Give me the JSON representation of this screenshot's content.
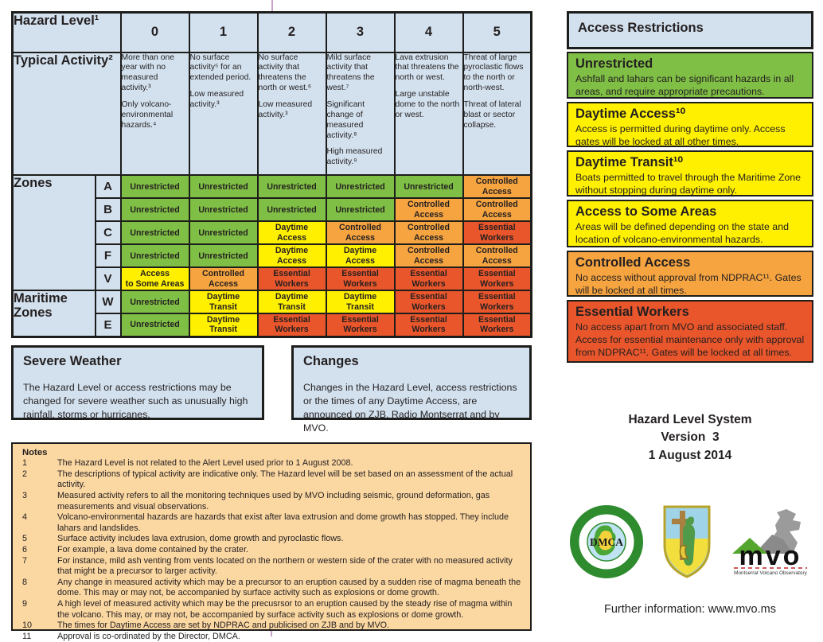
{
  "table": {
    "title": "Hazard Level¹",
    "levels": [
      "0",
      "1",
      "2",
      "3",
      "4",
      "5"
    ],
    "typical_title": "Typical Activity²",
    "typical": [
      {
        "paragraphs": [
          "More than one year with no measured activity.³",
          "Only volcano-environmental hazards.⁴"
        ]
      },
      {
        "paragraphs": [
          "No surface activity⁵ for an extended period.",
          "Low measured activity.³"
        ]
      },
      {
        "paragraphs": [
          "No surface activity that threatens the north or west.⁶",
          "Low measured activity.³"
        ]
      },
      {
        "paragraphs": [
          "Mild surface activity that threatens the west.⁷",
          "Significant change of measured activity.⁸",
          "High measured activity.⁹"
        ]
      },
      {
        "paragraphs": [
          "Lava extrusion that threatens the north or west.",
          "Large unstable dome to the north or west."
        ]
      },
      {
        "paragraphs": [
          "Threat of large pyroclastic flows to the north or north-west.",
          "Threat of lateral blast or sector collapse."
        ]
      }
    ],
    "zones_label": "Zones",
    "maritime_label": "Maritime Zones",
    "zone_rows": [
      {
        "letter": "A",
        "cells": [
          {
            "label": "Unrestricted",
            "color": "green"
          },
          {
            "label": "Unrestricted",
            "color": "green"
          },
          {
            "label": "Unrestricted",
            "color": "green"
          },
          {
            "label": "Unrestricted",
            "color": "green"
          },
          {
            "label": "Unrestricted",
            "color": "green"
          },
          {
            "label": "Controlled\nAccess",
            "color": "orange"
          }
        ]
      },
      {
        "letter": "B",
        "cells": [
          {
            "label": "Unrestricted",
            "color": "green"
          },
          {
            "label": "Unrestricted",
            "color": "green"
          },
          {
            "label": "Unrestricted",
            "color": "green"
          },
          {
            "label": "Unrestricted",
            "color": "green"
          },
          {
            "label": "Controlled\nAccess",
            "color": "orange"
          },
          {
            "label": "Controlled\nAccess",
            "color": "orange"
          }
        ]
      },
      {
        "letter": "C",
        "cells": [
          {
            "label": "Unrestricted",
            "color": "green"
          },
          {
            "label": "Unrestricted",
            "color": "green"
          },
          {
            "label": "Daytime\nAccess",
            "color": "yellow"
          },
          {
            "label": "Controlled\nAccess",
            "color": "orange"
          },
          {
            "label": "Controlled\nAccess",
            "color": "orange"
          },
          {
            "label": "Essential\nWorkers",
            "color": "red"
          }
        ]
      },
      {
        "letter": "F",
        "cells": [
          {
            "label": "Unrestricted",
            "color": "green"
          },
          {
            "label": "Unrestricted",
            "color": "green"
          },
          {
            "label": "Daytime\nAccess",
            "color": "yellow"
          },
          {
            "label": "Daytime\nAccess",
            "color": "yellow"
          },
          {
            "label": "Controlled\nAccess",
            "color": "orange"
          },
          {
            "label": "Controlled\nAccess",
            "color": "orange"
          }
        ]
      },
      {
        "letter": "V",
        "cells": [
          {
            "label": "Access\nto Some Areas",
            "color": "yellow"
          },
          {
            "label": "Controlled\nAccess",
            "color": "orange"
          },
          {
            "label": "Essential\nWorkers",
            "color": "red"
          },
          {
            "label": "Essential\nWorkers",
            "color": "red"
          },
          {
            "label": "Essential\nWorkers",
            "color": "red"
          },
          {
            "label": "Essential\nWorkers",
            "color": "red"
          }
        ]
      },
      {
        "letter": "W",
        "cells": [
          {
            "label": "Unrestricted",
            "color": "green"
          },
          {
            "label": "Daytime\nTransit",
            "color": "yellow"
          },
          {
            "label": "Daytime\nTransit",
            "color": "yellow"
          },
          {
            "label": "Daytime\nTransit",
            "color": "yellow"
          },
          {
            "label": "Essential\nWorkers",
            "color": "red"
          },
          {
            "label": "Essential\nWorkers",
            "color": "red"
          }
        ]
      },
      {
        "letter": "E",
        "cells": [
          {
            "label": "Unrestricted",
            "color": "green"
          },
          {
            "label": "Daytime\nTransit",
            "color": "yellow"
          },
          {
            "label": "Essential\nWorkers",
            "color": "red"
          },
          {
            "label": "Essential\nWorkers",
            "color": "red"
          },
          {
            "label": "Essential\nWorkers",
            "color": "red"
          },
          {
            "label": "Essential\nWorkers",
            "color": "red"
          }
        ]
      }
    ]
  },
  "boxes": {
    "severe_weather": {
      "title": "Severe Weather",
      "body": "The Hazard Level or access restrictions may be changed for severe weather such as unusually high rainfall, storms or hurricanes."
    },
    "changes": {
      "title": "Changes",
      "body": "Changes in the Hazard Level, access restrictions or the times of any Daytime Access,  are announced on ZJB, Radio Montserrat and by MVO."
    }
  },
  "notes": {
    "title": "Notes",
    "items": [
      {
        "num": "1",
        "text": "The Hazard Level is not related to the Alert Level used prior to 1 August 2008."
      },
      {
        "num": "2",
        "text": "The descriptions of typical activity are indicative only. The Hazard level will be set based on an assessment of the actual activity."
      },
      {
        "num": "3",
        "text": "Measured activity refers to all the monitoring techniques used by MVO including seismic, ground deformation, gas measurements and visual observations."
      },
      {
        "num": "4",
        "text": "Volcano-environmental hazards are hazards that exist after lava extrusion and dome growth has stopped. They include lahars and landslides."
      },
      {
        "num": "5",
        "text": "Surface activity includes lava extrusion, dome growth and pyroclastic flows."
      },
      {
        "num": "6",
        "text": "For example, a lava dome contained by the crater."
      },
      {
        "num": "7",
        "text": "For instance, mild ash venting from vents located on the northern or western side of the crater with no measured activity that might be a precursor to larger activity."
      },
      {
        "num": "8",
        "text": "Any change in measured activity which may be a precursor to an eruption caused by a sudden rise of magma beneath the dome. This may or may not, be accompanied by surface activity such as explosions or dome growth."
      },
      {
        "num": "9",
        "text": "A high level of measured activity which may be the precusrsor to an eruption caused by the steady rise of magma within the volcano. This may, or may not, be accompanied by surface activity such as explosions or dome growth."
      },
      {
        "num": "10",
        "text": "The times for Daytime Access are set by NDPRAC and publicised on ZJB and by MVO."
      },
      {
        "num": "11",
        "text": "Approval is co-ordinated by the Director, DMCA."
      }
    ]
  },
  "access": {
    "title": "Access Restrictions",
    "sections": [
      {
        "title": "Unrestricted",
        "color": "green",
        "body": "Ashfall and lahars can be significant hazards in all areas, and require appropriate precautions."
      },
      {
        "title": "Daytime Access¹⁰",
        "color": "yellow",
        "body": "Access is permitted during daytime only. Access gates will be locked at all other times."
      },
      {
        "title": "Daytime Transit¹⁰",
        "color": "yellow",
        "body": "Boats permitted to travel through the Maritime Zone without stopping during daytime only."
      },
      {
        "title": "Access to Some Areas",
        "color": "yellow",
        "body": "Areas will be defined depending on the state and location of volcano-environmental hazards."
      },
      {
        "title": "Controlled Access",
        "color": "orange",
        "body": "No access without approval from NDPRAC¹¹. Gates will be locked at all times."
      },
      {
        "title": "Essential Workers",
        "color": "red",
        "body": "No access apart from MVO and associated staff. Access for essential maintenance only with approval from NDPRAC¹¹. Gates will be locked at all times."
      }
    ]
  },
  "version": {
    "lines": [
      "Hazard Level System",
      "Version  3",
      "1 August 2014"
    ]
  },
  "logos": {
    "dmca_label": "DMCA",
    "mvo_label": "mvo",
    "mvo_caption": "Montserrat Volcano Observatory"
  },
  "footer": {
    "text": "Further information: www.mvo.ms"
  },
  "colors": {
    "unrestricted": "#80bf45",
    "daytime": "#fff000",
    "controlled": "#f6a440",
    "essential": "#ea562b",
    "panel_blue": "#d3e1ee",
    "notes_bg": "#fbd7a2",
    "fold_mark": "#c9a2ca"
  }
}
